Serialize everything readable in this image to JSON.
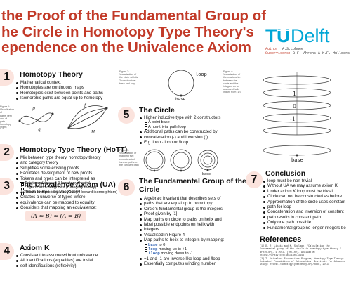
{
  "header": {
    "title_lines": [
      "the Proof of the Fundamental Group of",
      "he Circle in Homotopy Type Theory's",
      "ependence on the Univalence Axiom"
    ],
    "logo_text": "TUDelft",
    "author_label": "Author:",
    "author_value": "A.S.Lohuee",
    "supervisors_label": "Supervisors:",
    "supervisors_value": "B.F. Ahrens & K.F. Mullders"
  },
  "sections": {
    "s1": {
      "number": "1",
      "heading": "Homotopy Theory",
      "items": [
        "Mathematical context",
        "Homotopies are continuous maps",
        "Homotopies exist between points and paths",
        "Isomorphic paths are equal up to homotopy"
      ]
    },
    "s2": {
      "number": "2",
      "heading": "Homotopy Type Theory (HoTT)",
      "items": [
        "Mix between type theory, homotopy theory",
        "and category theory",
        "Simplifies some existing proofs",
        "Facilitates development of new proofs",
        "Tokens and types can be interpreted as"
      ],
      "subitems": [
        "Points and spaces (Homotopy theory)",
        "Objects and categories (Category theory)",
        "Proofs and propositions (Curry-Howard isomorphism)"
      ]
    },
    "s3": {
      "number": "3",
      "heading": "The Univalence Axiom (UA)",
      "items": [
        "Addition to HoTT by Voevodsky",
        "Creates a universe of types where",
        "equivalence can be mapped to equality",
        "Considers that mapping an equivalence:"
      ],
      "formula": "(A ≃ B) ≃ (A = B)"
    },
    "s4": {
      "number": "4",
      "heading": "Axiom K",
      "items": [
        "Consistent to assume without univalence",
        "All identifications (equalities) are trivial",
        "self-identifications (reflexivity)"
      ]
    },
    "s5": {
      "number": "5",
      "heading": "The Circle",
      "items": [
        "Higher inductive type with 2 constructors"
      ],
      "subitems": [
        "A point base",
        "A non-trivial path loop"
      ],
      "items2": [
        "Additional paths can be constructed by",
        "concatenation (·) and inversion (!)",
        "E.g. loop · loop or !loop"
      ]
    },
    "s6": {
      "number": "6",
      "heading_lines": [
        "The Fundamental Group of the",
        "Circle"
      ],
      "items": [
        "Algebraic invariant that describes sets of",
        "paths that are equal up to homotopy",
        "Circle's fundamental group is the integers",
        "Proof given by [1]",
        "Map paths on circle to paths on helix and",
        "label possible endpoints on helix with",
        "integers",
        "Visualised in Figure 4",
        "Map paths to helix to integers by mapping:"
      ],
      "mapping": [
        {
          "lhs": "base",
          "mid": "to",
          "rhs": "0"
        },
        {
          "lhs": "loop",
          "mid": "moving up",
          "rhs": "to +1"
        },
        {
          "lhs": "!loop",
          "mid": "moving down",
          "rhs": "to -1"
        }
      ],
      "items2": [
        "+1 and -1 are inverse like loop and !loop",
        "Essentially computes winding number"
      ]
    },
    "s7": {
      "number": "7",
      "heading": "Conclusion",
      "items": [
        "loop must be non-trivial",
        "Without UA we may assume axiom K",
        "Under axiom K loop must be trivial",
        "Circle can not be constructed as before",
        "Approximation of the circle uses constant",
        "path for loop",
        "Concatenation and inversion of constant",
        "path results in constant path",
        "Only one path possible",
        "Fundamental group no longer integers be"
      ]
    }
  },
  "figures": {
    "fig1_caption": [
      "Figure 1:",
      "Visualisation of",
      "paths (left) and of",
      "path homotopy",
      "(right)"
    ],
    "fig1_labels": {
      "p": "p",
      "q": "q",
      "f": "f",
      "H": "H"
    },
    "fig2_caption": [
      "Figure 2:",
      "Visualisation of",
      "the circle with its",
      "2 constructors:",
      "base and loop"
    ],
    "fig2_labels": {
      "loop": "loop",
      "base": "base"
    },
    "fig3_caption": [
      "Figure 3:",
      "Visualisation of",
      "mapping two",
      "concatenated",
      "inverse paths to",
      "the constant path"
    ],
    "fig3_labels": {
      "base": "base"
    },
    "fig4_caption": [
      "Figure 4:",
      "Visualisation of",
      "the relationship",
      "between the",
      "circle and the",
      "integers on an",
      "unwound helix",
      "(figure from [1])"
    ],
    "fig4_labels": {
      "one": "1",
      "zero": "0",
      "minus_one": "-1",
      "base": "base"
    }
  },
  "references": {
    "heading": "References",
    "lines": [
      "[1] D. R. Licata and M. Shulman. \"Calculating the",
      "fundamental group of the circle in homotopy type theory.\"",
      "arXiv.org, 1 2013. [Online]. Available:",
      "https://arxiv.org/abs/1301.3443",
      "[2] T. Univalent Foundations Program, Homotopy Type Theory:",
      "Univalent Foundations of Mathematics. Institute for Advanced",
      "Study: https://homotopytypetheory.org/book, 2013."
    ]
  },
  "colors": {
    "accent": "#c23a28",
    "badge": "#fbe3dd",
    "code": "#2a5db0",
    "logo": "#00a6d6"
  }
}
